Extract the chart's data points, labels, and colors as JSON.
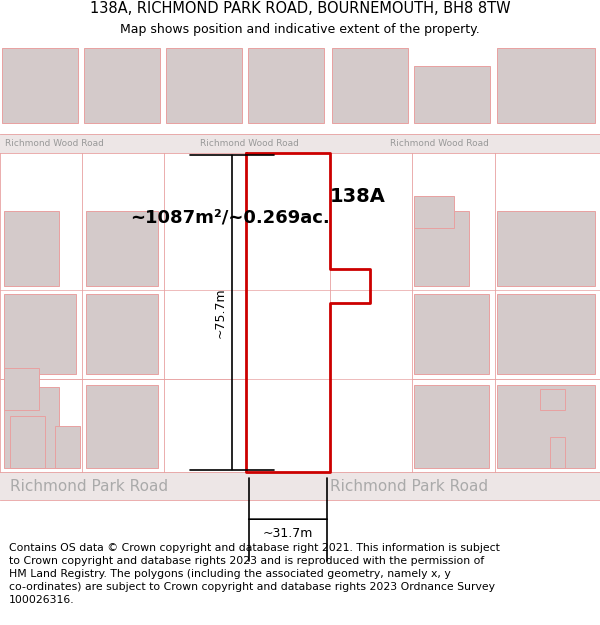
{
  "title": "138A, RICHMOND PARK ROAD, BOURNEMOUTH, BH8 8TW",
  "subtitle": "Map shows position and indicative extent of the property.",
  "copyright": "Contains OS data © Crown copyright and database right 2021. This information is subject\nto Crown copyright and database rights 2023 and is reproduced with the permission of\nHM Land Registry. The polygons (including the associated geometry, namely x, y\nco-ordinates) are subject to Crown copyright and database rights 2023 Ordnance Survey\n100026316.",
  "area_label": "~1087m²/~0.269ac.",
  "property_label": "138A",
  "dim_vertical": "~75.7m",
  "dim_horizontal": "~31.7m",
  "road_top": "Richmond Wood Road",
  "road_bottom_left": "Richmond Park Road",
  "road_bottom_right": "Richmond Park Road",
  "bg_color": "#ffffff",
  "map_bg": "#f7f2f2",
  "plot_line_color": "#e8a0a0",
  "building_fill": "#d4caca",
  "highlight_color": "#cc0000",
  "title_fontsize": 10.5,
  "subtitle_fontsize": 9,
  "copyright_fontsize": 7.8
}
